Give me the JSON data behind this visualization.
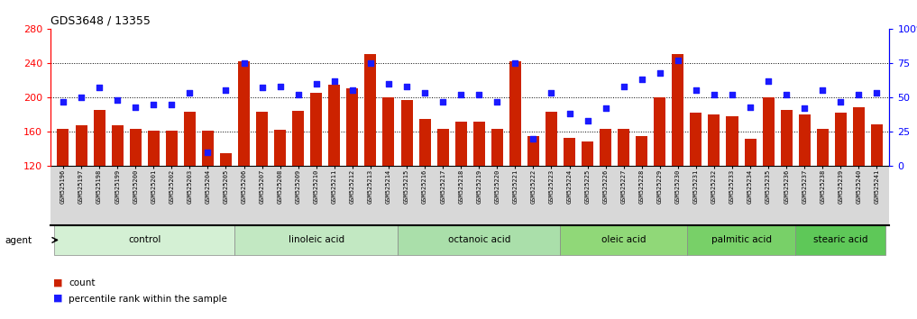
{
  "title": "GDS3648 / 13355",
  "samples": [
    "GSM525196",
    "GSM525197",
    "GSM525198",
    "GSM525199",
    "GSM525200",
    "GSM525201",
    "GSM525202",
    "GSM525203",
    "GSM525204",
    "GSM525205",
    "GSM525206",
    "GSM525207",
    "GSM525208",
    "GSM525209",
    "GSM525210",
    "GSM525211",
    "GSM525212",
    "GSM525213",
    "GSM525214",
    "GSM525215",
    "GSM525216",
    "GSM525217",
    "GSM525218",
    "GSM525219",
    "GSM525220",
    "GSM525221",
    "GSM525222",
    "GSM525223",
    "GSM525224",
    "GSM525225",
    "GSM525226",
    "GSM525227",
    "GSM525228",
    "GSM525229",
    "GSM525230",
    "GSM525231",
    "GSM525232",
    "GSM525233",
    "GSM525234",
    "GSM525235",
    "GSM525236",
    "GSM525237",
    "GSM525238",
    "GSM525239",
    "GSM525240",
    "GSM525241"
  ],
  "counts": [
    163,
    167,
    185,
    167,
    163,
    161,
    161,
    183,
    161,
    135,
    242,
    183,
    162,
    184,
    205,
    215,
    210,
    250,
    200,
    197,
    175,
    163,
    172,
    172,
    163,
    242,
    155,
    183,
    153,
    148,
    163,
    163,
    155,
    200,
    250,
    182,
    180,
    178,
    152,
    200,
    185,
    180,
    163,
    182,
    188,
    168
  ],
  "percentile_ranks": [
    47,
    50,
    57,
    48,
    43,
    45,
    45,
    53,
    10,
    55,
    75,
    57,
    58,
    52,
    60,
    62,
    55,
    75,
    60,
    58,
    53,
    47,
    52,
    52,
    47,
    75,
    20,
    53,
    38,
    33,
    42,
    58,
    63,
    68,
    77,
    55,
    52,
    52,
    43,
    62,
    52,
    42,
    55,
    47,
    52,
    53
  ],
  "groups": [
    {
      "label": "control",
      "start": 0,
      "end": 9,
      "color": "#d4f0d4"
    },
    {
      "label": "linoleic acid",
      "start": 10,
      "end": 18,
      "color": "#c2e8c2"
    },
    {
      "label": "octanoic acid",
      "start": 19,
      "end": 27,
      "color": "#aadfaa"
    },
    {
      "label": "oleic acid",
      "start": 28,
      "end": 34,
      "color": "#90d890"
    },
    {
      "label": "palmitic acid",
      "start": 35,
      "end": 40,
      "color": "#78d078"
    },
    {
      "label": "stearic acid",
      "start": 41,
      "end": 45,
      "color": "#5ec85e"
    }
  ],
  "ylim_left": [
    120,
    280
  ],
  "ylim_right": [
    0,
    100
  ],
  "yticks_left": [
    120,
    160,
    200,
    240,
    280
  ],
  "yticks_right": [
    0,
    25,
    50,
    75,
    100
  ],
  "bar_color": "#cc2200",
  "dot_color": "#1a1aff",
  "bg_color": "#ffffff",
  "grid_yticks": [
    160,
    200,
    240
  ]
}
